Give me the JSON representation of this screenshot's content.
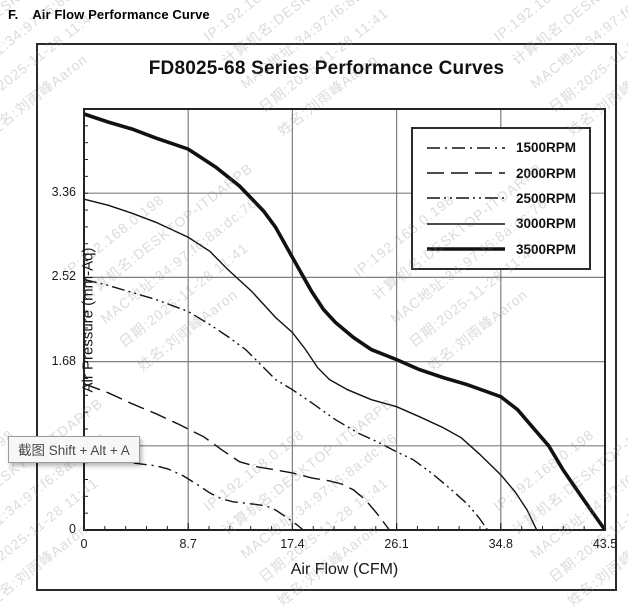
{
  "heading": {
    "prefix": "F.",
    "text": "Air Flow Performance Curve"
  },
  "tooltip": {
    "text": "截图 Shift + Alt + A"
  },
  "watermark": {
    "lines": [
      "IP:192.168.0.198",
      "计算机名:DESKTOP-ITDARPB",
      "MAC地址:34:97:f6:8a:dc:76",
      "日期:2025-11-28 11:41",
      "姓名:刘雨峰Aaron"
    ]
  },
  "chart_data": {
    "type": "line",
    "title": "FD8025-68 Series Performance Curves",
    "xlabel": "Air Flow (CFM)",
    "ylabel": "Air Pressure (mm-Aq)",
    "xlim": [
      0,
      43.5
    ],
    "ylim": [
      0,
      4.2
    ],
    "grid": true,
    "legend_position": "top-right",
    "x_ticks": [
      0,
      8.7,
      17.4,
      26.1,
      34.8,
      43.5
    ],
    "x_tick_labels": [
      "0",
      "8.7",
      "17.4",
      "26.1",
      "34.8",
      "43.5"
    ],
    "y_ticks": [
      0,
      1.68,
      2.52,
      3.36
    ],
    "y_tick_labels": [
      "0",
      "1.68",
      "2.52",
      "3.36"
    ],
    "x_gridlines": [
      8.7,
      17.4,
      26.1,
      34.8
    ],
    "y_gridlines": [
      0.84,
      1.68,
      2.52,
      3.36
    ],
    "x_minor_step": 1.74,
    "y_minor_step": 0.168,
    "colors": {
      "line": "#111111",
      "grid": "#7f7f7f",
      "frame": "#222222",
      "text": "#1a1a1a"
    },
    "series": [
      {
        "name": "1500RPM",
        "style": "dash-dot",
        "points": [
          [
            0,
            0.72
          ],
          [
            2,
            0.7
          ],
          [
            4,
            0.67
          ],
          [
            6,
            0.64
          ],
          [
            7,
            0.61
          ],
          [
            8.3,
            0.54
          ],
          [
            9.5,
            0.45
          ],
          [
            10.5,
            0.37
          ],
          [
            11.5,
            0.31
          ],
          [
            12.5,
            0.28
          ],
          [
            14,
            0.26
          ],
          [
            15.2,
            0.24
          ],
          [
            16,
            0.2
          ],
          [
            17,
            0.12
          ],
          [
            17.8,
            0.05
          ],
          [
            18.3,
            0
          ]
        ]
      },
      {
        "name": "2000RPM",
        "style": "long-dash",
        "points": [
          [
            0,
            1.46
          ],
          [
            2,
            1.37
          ],
          [
            4,
            1.26
          ],
          [
            6,
            1.16
          ],
          [
            8,
            1.05
          ],
          [
            10,
            0.93
          ],
          [
            11.5,
            0.8
          ],
          [
            13,
            0.68
          ],
          [
            14.5,
            0.63
          ],
          [
            16,
            0.6
          ],
          [
            17.4,
            0.57
          ],
          [
            19,
            0.52
          ],
          [
            20.5,
            0.49
          ],
          [
            21.5,
            0.46
          ],
          [
            22.5,
            0.4
          ],
          [
            23.5,
            0.3
          ],
          [
            24.5,
            0.16
          ],
          [
            25.5,
            0
          ]
        ]
      },
      {
        "name": "2500RPM",
        "style": "dash-dot-dot",
        "points": [
          [
            0,
            2.5
          ],
          [
            2,
            2.44
          ],
          [
            4,
            2.37
          ],
          [
            6,
            2.3
          ],
          [
            8.7,
            2.18
          ],
          [
            10.5,
            2.05
          ],
          [
            12,
            1.93
          ],
          [
            13.5,
            1.8
          ],
          [
            15,
            1.62
          ],
          [
            16,
            1.5
          ],
          [
            17.4,
            1.4
          ],
          [
            19,
            1.27
          ],
          [
            21,
            1.1
          ],
          [
            23,
            0.96
          ],
          [
            24.5,
            0.88
          ],
          [
            26.1,
            0.78
          ],
          [
            27.5,
            0.7
          ],
          [
            29,
            0.57
          ],
          [
            30.5,
            0.42
          ],
          [
            32,
            0.26
          ],
          [
            33,
            0.12
          ],
          [
            33.7,
            0
          ]
        ]
      },
      {
        "name": "3000RPM",
        "style": "solid-thin",
        "points": [
          [
            0,
            3.3
          ],
          [
            2,
            3.24
          ],
          [
            4,
            3.16
          ],
          [
            6,
            3.07
          ],
          [
            8.7,
            2.92
          ],
          [
            10.5,
            2.78
          ],
          [
            12,
            2.6
          ],
          [
            14,
            2.38
          ],
          [
            16,
            2.12
          ],
          [
            17.4,
            1.97
          ],
          [
            18.5,
            1.8
          ],
          [
            19.5,
            1.62
          ],
          [
            20.5,
            1.5
          ],
          [
            22,
            1.4
          ],
          [
            24,
            1.3
          ],
          [
            26.1,
            1.23
          ],
          [
            28,
            1.13
          ],
          [
            30,
            1.02
          ],
          [
            31.5,
            0.92
          ],
          [
            33,
            0.76
          ],
          [
            34.8,
            0.55
          ],
          [
            36,
            0.38
          ],
          [
            37,
            0.2
          ],
          [
            37.8,
            0
          ]
        ]
      },
      {
        "name": "3500RPM",
        "style": "solid-thick",
        "points": [
          [
            0,
            4.15
          ],
          [
            2,
            4.07
          ],
          [
            4,
            4.0
          ],
          [
            6,
            3.91
          ],
          [
            8.7,
            3.8
          ],
          [
            11,
            3.62
          ],
          [
            13,
            3.43
          ],
          [
            15,
            3.18
          ],
          [
            16,
            3.02
          ],
          [
            17.4,
            2.72
          ],
          [
            19,
            2.38
          ],
          [
            20,
            2.2
          ],
          [
            21,
            2.07
          ],
          [
            22.5,
            1.92
          ],
          [
            24,
            1.8
          ],
          [
            26.1,
            1.7
          ],
          [
            28,
            1.6
          ],
          [
            30,
            1.52
          ],
          [
            32,
            1.45
          ],
          [
            34.8,
            1.33
          ],
          [
            36.2,
            1.2
          ],
          [
            37.5,
            1.02
          ],
          [
            38.8,
            0.84
          ],
          [
            40,
            0.6
          ],
          [
            41.5,
            0.34
          ],
          [
            42.5,
            0.17
          ],
          [
            43.5,
            0
          ]
        ]
      }
    ]
  }
}
